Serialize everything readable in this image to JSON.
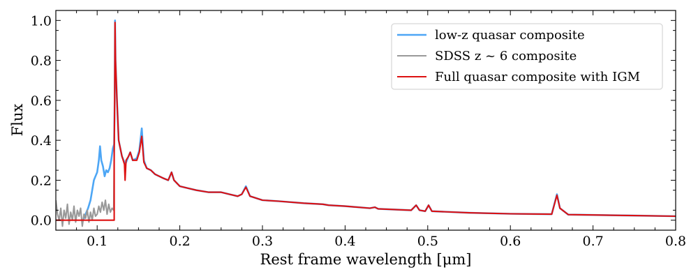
{
  "chart_data": {
    "type": "line",
    "title": "",
    "xlabel": "Rest frame wavelength [μm]",
    "ylabel": "Flux",
    "xlim": [
      0.05,
      0.8
    ],
    "ylim": [
      -0.05,
      1.05
    ],
    "x_ticks": [
      0.1,
      0.2,
      0.3,
      0.4,
      0.5,
      0.6,
      0.7,
      0.8
    ],
    "x_tick_labels": [
      "0.1",
      "0.2",
      "0.3",
      "0.4",
      "0.5",
      "0.6",
      "0.7",
      "0.8"
    ],
    "y_ticks": [
      0.0,
      0.2,
      0.4,
      0.6,
      0.8,
      1.0
    ],
    "y_tick_labels": [
      "0.0",
      "0.2",
      "0.4",
      "0.6",
      "0.8",
      "1.0"
    ],
    "legend_position": "top-right",
    "series": [
      {
        "name": "low-z quasar composite",
        "color": "#4da6f5",
        "points": [
          [
            0.083,
            0.0
          ],
          [
            0.086,
            0.03
          ],
          [
            0.089,
            0.06
          ],
          [
            0.092,
            0.1
          ],
          [
            0.094,
            0.15
          ],
          [
            0.096,
            0.2
          ],
          [
            0.098,
            0.22
          ],
          [
            0.1,
            0.24
          ],
          [
            0.102,
            0.3
          ],
          [
            0.1035,
            0.37
          ],
          [
            0.105,
            0.3
          ],
          [
            0.107,
            0.27
          ],
          [
            0.109,
            0.22
          ],
          [
            0.111,
            0.25
          ],
          [
            0.113,
            0.24
          ],
          [
            0.115,
            0.26
          ],
          [
            0.117,
            0.3
          ],
          [
            0.119,
            0.36
          ],
          [
            0.1205,
            0.38
          ],
          [
            0.1212,
            0.6
          ],
          [
            0.1216,
            1.0
          ],
          [
            0.1222,
            0.8
          ],
          [
            0.124,
            0.6
          ],
          [
            0.126,
            0.4
          ],
          [
            0.13,
            0.32
          ],
          [
            0.134,
            0.28
          ],
          [
            0.138,
            0.32
          ],
          [
            0.14,
            0.34
          ],
          [
            0.143,
            0.3
          ],
          [
            0.148,
            0.31
          ],
          [
            0.151,
            0.35
          ],
          [
            0.154,
            0.46
          ],
          [
            0.1565,
            0.3
          ],
          [
            0.16,
            0.26
          ],
          [
            0.165,
            0.25
          ],
          [
            0.17,
            0.23
          ],
          [
            0.18,
            0.21
          ],
          [
            0.186,
            0.2
          ],
          [
            0.19,
            0.24
          ],
          [
            0.193,
            0.2
          ],
          [
            0.2,
            0.17
          ],
          [
            0.21,
            0.16
          ],
          [
            0.22,
            0.15
          ],
          [
            0.235,
            0.14
          ],
          [
            0.25,
            0.14
          ],
          [
            0.26,
            0.13
          ],
          [
            0.27,
            0.12
          ],
          [
            0.275,
            0.13
          ],
          [
            0.28,
            0.17
          ],
          [
            0.285,
            0.12
          ],
          [
            0.3,
            0.1
          ],
          [
            0.32,
            0.095
          ],
          [
            0.35,
            0.085
          ],
          [
            0.373,
            0.08
          ],
          [
            0.38,
            0.075
          ],
          [
            0.4,
            0.07
          ],
          [
            0.43,
            0.06
          ],
          [
            0.436,
            0.065
          ],
          [
            0.44,
            0.057
          ],
          [
            0.48,
            0.05
          ],
          [
            0.486,
            0.075
          ],
          [
            0.49,
            0.05
          ],
          [
            0.497,
            0.045
          ],
          [
            0.501,
            0.075
          ],
          [
            0.505,
            0.045
          ],
          [
            0.55,
            0.037
          ],
          [
            0.6,
            0.032
          ],
          [
            0.65,
            0.03
          ],
          [
            0.6563,
            0.13
          ],
          [
            0.66,
            0.06
          ],
          [
            0.67,
            0.028
          ],
          [
            0.7,
            0.026
          ],
          [
            0.75,
            0.023
          ],
          [
            0.8,
            0.02
          ]
        ]
      },
      {
        "name": "SDSS z ~ 6 composite",
        "color": "#999999",
        "points": [
          [
            0.05,
            0.1
          ],
          [
            0.052,
            0.03
          ],
          [
            0.054,
            0.0
          ],
          [
            0.056,
            0.06
          ],
          [
            0.058,
            -0.03
          ],
          [
            0.06,
            0.05
          ],
          [
            0.062,
            0.01
          ],
          [
            0.064,
            0.08
          ],
          [
            0.066,
            -0.02
          ],
          [
            0.068,
            0.04
          ],
          [
            0.07,
            0.0
          ],
          [
            0.072,
            0.07
          ],
          [
            0.074,
            -0.01
          ],
          [
            0.076,
            0.05
          ],
          [
            0.078,
            0.02
          ],
          [
            0.08,
            0.06
          ],
          [
            0.082,
            -0.03
          ],
          [
            0.084,
            0.03
          ],
          [
            0.086,
            0.01
          ],
          [
            0.088,
            0.05
          ],
          [
            0.09,
            -0.01
          ],
          [
            0.092,
            0.04
          ],
          [
            0.094,
            0.0
          ],
          [
            0.096,
            0.06
          ],
          [
            0.098,
            0.02
          ],
          [
            0.1,
            0.03
          ],
          [
            0.102,
            0.07
          ],
          [
            0.104,
            0.04
          ],
          [
            0.106,
            0.09
          ],
          [
            0.108,
            0.05
          ],
          [
            0.11,
            0.1
          ],
          [
            0.112,
            0.03
          ],
          [
            0.114,
            0.08
          ],
          [
            0.116,
            0.04
          ],
          [
            0.118,
            0.06
          ],
          [
            0.12,
            0.05
          ],
          [
            0.1205,
            0.3
          ],
          [
            0.1212,
            0.6
          ],
          [
            0.1216,
            0.99
          ]
        ]
      },
      {
        "name": "Full quasar composite with IGM",
        "color": "#dd1111",
        "points": [
          [
            0.05,
            0.0
          ],
          [
            0.12,
            0.0
          ],
          [
            0.1206,
            0.0
          ],
          [
            0.1206,
            0.35
          ],
          [
            0.1212,
            0.6
          ],
          [
            0.1216,
            0.99
          ],
          [
            0.1222,
            0.8
          ],
          [
            0.124,
            0.6
          ],
          [
            0.126,
            0.4
          ],
          [
            0.13,
            0.32
          ],
          [
            0.133,
            0.28
          ],
          [
            0.1338,
            0.2
          ],
          [
            0.135,
            0.3
          ],
          [
            0.138,
            0.32
          ],
          [
            0.14,
            0.34
          ],
          [
            0.143,
            0.3
          ],
          [
            0.148,
            0.3
          ],
          [
            0.151,
            0.34
          ],
          [
            0.154,
            0.42
          ],
          [
            0.1565,
            0.29
          ],
          [
            0.16,
            0.26
          ],
          [
            0.165,
            0.25
          ],
          [
            0.17,
            0.23
          ],
          [
            0.18,
            0.21
          ],
          [
            0.186,
            0.2
          ],
          [
            0.19,
            0.24
          ],
          [
            0.193,
            0.2
          ],
          [
            0.2,
            0.17
          ],
          [
            0.21,
            0.16
          ],
          [
            0.22,
            0.15
          ],
          [
            0.235,
            0.14
          ],
          [
            0.25,
            0.14
          ],
          [
            0.26,
            0.13
          ],
          [
            0.27,
            0.12
          ],
          [
            0.275,
            0.13
          ],
          [
            0.28,
            0.165
          ],
          [
            0.285,
            0.12
          ],
          [
            0.3,
            0.1
          ],
          [
            0.32,
            0.095
          ],
          [
            0.35,
            0.085
          ],
          [
            0.373,
            0.08
          ],
          [
            0.38,
            0.075
          ],
          [
            0.4,
            0.07
          ],
          [
            0.43,
            0.06
          ],
          [
            0.436,
            0.065
          ],
          [
            0.44,
            0.057
          ],
          [
            0.48,
            0.05
          ],
          [
            0.486,
            0.075
          ],
          [
            0.49,
            0.05
          ],
          [
            0.497,
            0.045
          ],
          [
            0.501,
            0.075
          ],
          [
            0.505,
            0.045
          ],
          [
            0.55,
            0.037
          ],
          [
            0.6,
            0.032
          ],
          [
            0.65,
            0.03
          ],
          [
            0.6563,
            0.125
          ],
          [
            0.66,
            0.06
          ],
          [
            0.67,
            0.028
          ],
          [
            0.7,
            0.026
          ],
          [
            0.75,
            0.023
          ],
          [
            0.8,
            0.02
          ]
        ]
      }
    ]
  }
}
